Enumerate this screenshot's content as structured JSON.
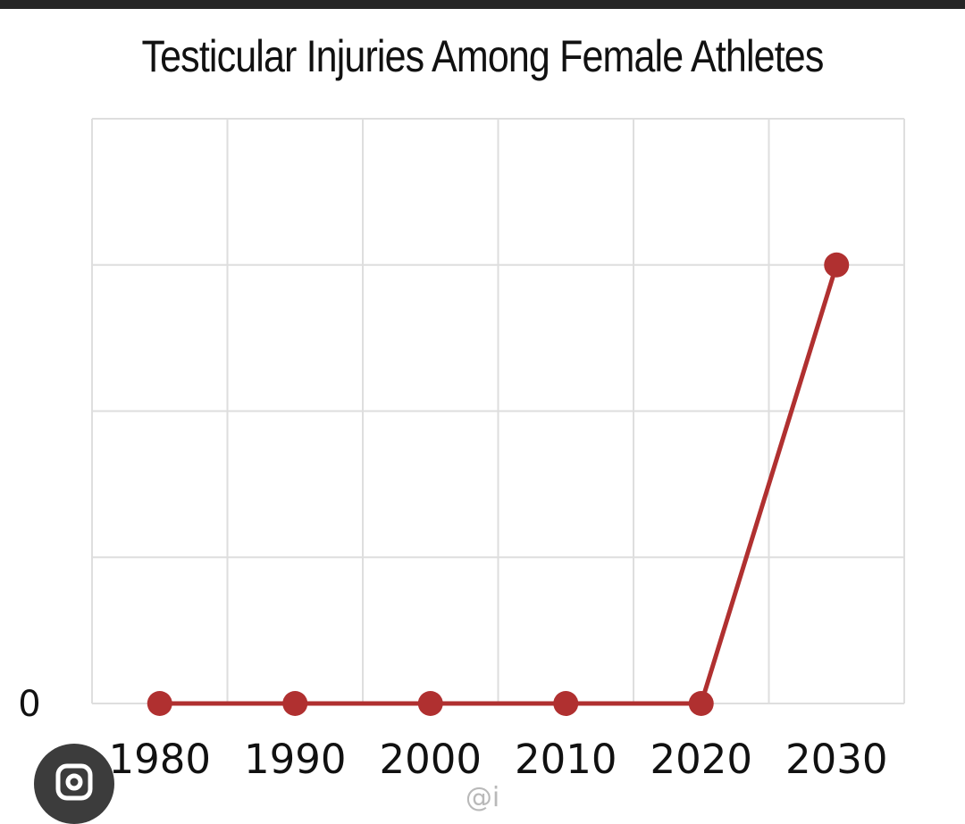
{
  "chart_data": {
    "type": "line",
    "title": "Testicular Injuries Among Female Athletes",
    "x": [
      "1980",
      "1990",
      "2000",
      "2010",
      "2020",
      "2030"
    ],
    "series": [
      {
        "values": [
          0,
          0,
          0,
          0,
          0,
          3
        ]
      }
    ],
    "ylim": [
      0,
      4
    ],
    "y_tick_labels": [
      "0"
    ],
    "grid": true,
    "legend": "none",
    "line_color": "#b03030",
    "grid_color": "#dedede"
  },
  "overlay": {
    "lens_icon": "google-lens-icon",
    "watermark": "@i"
  }
}
